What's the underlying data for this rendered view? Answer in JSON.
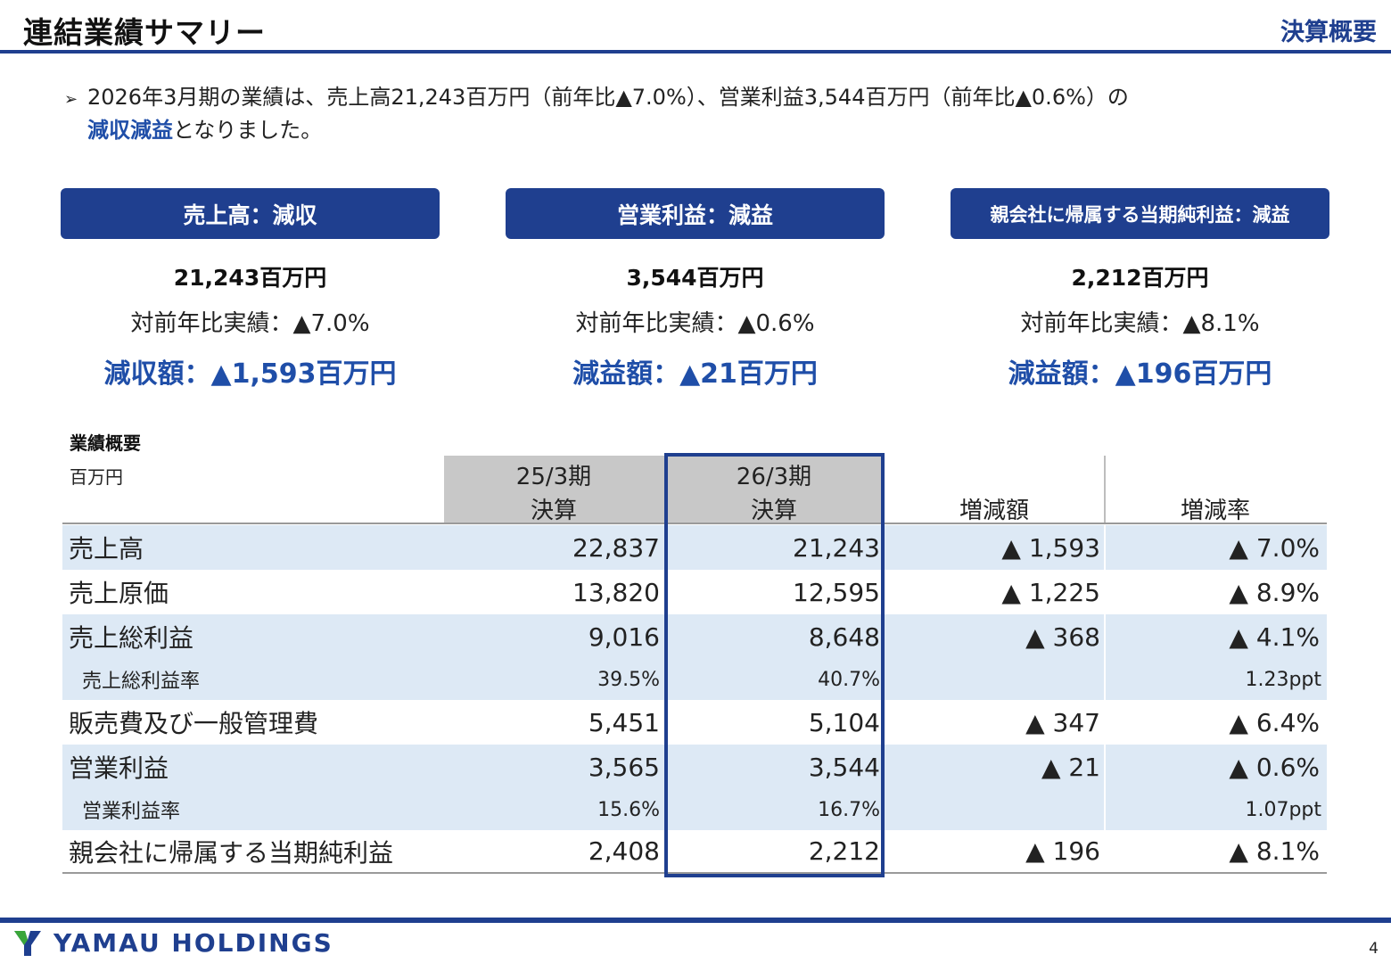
{
  "header": {
    "title": "連結業績サマリー",
    "section": "決算概要"
  },
  "summary": {
    "arrow": "➢",
    "line1": "2026年3月期の業績は、売上高21,243百万円（前年比▲7.0%）、営業利益3,544百万円（前年比▲0.6%）の",
    "line2_highlight": "減収減益",
    "line2_rest": "となりました。"
  },
  "cards": [
    {
      "header": "売上高：減収",
      "amount": "21,243百万円",
      "yoy": "対前年比実績：▲7.0%",
      "diff": "減収額：▲1,593百万円"
    },
    {
      "header": "営業利益：減益",
      "amount": "3,544百万円",
      "yoy": "対前年比実績：▲0.6%",
      "diff": "減益額：▲21百万円"
    },
    {
      "header": "親会社に帰属する当期純利益：減益",
      "amount": "2,212百万円",
      "yoy": "対前年比実績：▲8.1%",
      "diff": "減益額：▲196百万円"
    }
  ],
  "table": {
    "title": "業績概要",
    "unit": "百万円",
    "columns": [
      {
        "line1": "25/3期",
        "line2": "決算"
      },
      {
        "line1": "26/3期",
        "line2": "決算"
      },
      {
        "line1": "",
        "line2": "増減額"
      },
      {
        "line1": "",
        "line2": "増減率"
      }
    ],
    "rows": [
      {
        "label": "売上高",
        "v1": "22,837",
        "v2": "21,243",
        "diff": "▲ 1,593",
        "rate": "▲ 7.0%"
      },
      {
        "label": "売上原価",
        "v1": "13,820",
        "v2": "12,595",
        "diff": "▲ 1,225",
        "rate": "▲ 8.9%"
      },
      {
        "label": "売上総利益",
        "v1": "9,016",
        "v2": "8,648",
        "diff": "▲ 368",
        "rate": "▲ 4.1%"
      },
      {
        "label": "売上総利益率",
        "v1": "39.5%",
        "v2": "40.7%",
        "diff": "",
        "rate": "1.23ppt"
      },
      {
        "label": "販売費及び一般管理費",
        "v1": "5,451",
        "v2": "5,104",
        "diff": "▲ 347",
        "rate": "▲ 6.4%"
      },
      {
        "label": "営業利益",
        "v1": "3,565",
        "v2": "3,544",
        "diff": "▲ 21",
        "rate": "▲ 0.6%"
      },
      {
        "label": "営業利益率",
        "v1": "15.6%",
        "v2": "16.7%",
        "diff": "",
        "rate": "1.07ppt"
      },
      {
        "label": "親会社に帰属する当期純利益",
        "v1": "2,408",
        "v2": "2,212",
        "diff": "▲ 196",
        "rate": "▲ 8.1%"
      }
    ]
  },
  "footer": {
    "company": "YAMAU HOLDINGS",
    "page": "4"
  },
  "colors": {
    "accent": "#1f3f8f",
    "highlight_text": "#1f4ea8",
    "row_shade": "#dde9f5",
    "header_gray": "#c8c8c8"
  }
}
